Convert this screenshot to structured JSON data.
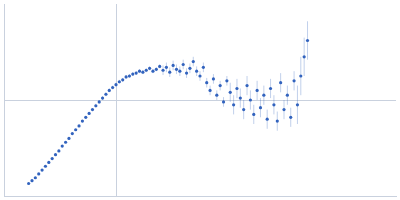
{
  "chart_data": {
    "type": "scatter",
    "color": "#3263be",
    "marker": "circle",
    "grid": true,
    "tick_labels": false,
    "xlim": [
      0,
      3.5
    ],
    "xticks": [
      1
    ],
    "ylim": [
      0,
      2
    ],
    "yticks": [
      1
    ],
    "x": [
      0.22,
      0.25,
      0.28,
      0.31,
      0.34,
      0.37,
      0.4,
      0.43,
      0.46,
      0.49,
      0.52,
      0.55,
      0.58,
      0.61,
      0.64,
      0.67,
      0.7,
      0.73,
      0.76,
      0.79,
      0.82,
      0.85,
      0.88,
      0.91,
      0.94,
      0.97,
      1.0,
      1.03,
      1.06,
      1.09,
      1.12,
      1.15,
      1.18,
      1.21,
      1.24,
      1.27,
      1.3,
      1.33,
      1.36,
      1.39,
      1.42,
      1.45,
      1.48,
      1.51,
      1.54,
      1.57,
      1.6,
      1.63,
      1.66,
      1.69,
      1.72,
      1.75,
      1.78,
      1.81,
      1.84,
      1.87,
      1.9,
      1.93,
      1.96,
      1.99,
      2.02,
      2.05,
      2.08,
      2.11,
      2.14,
      2.17,
      2.2,
      2.23,
      2.26,
      2.29,
      2.32,
      2.35,
      2.38,
      2.41,
      2.44,
      2.47,
      2.5,
      2.53,
      2.56,
      2.59,
      2.62,
      2.65,
      2.68,
      2.71
    ],
    "values": [
      0.13,
      0.16,
      0.19,
      0.23,
      0.27,
      0.31,
      0.35,
      0.39,
      0.43,
      0.47,
      0.52,
      0.56,
      0.6,
      0.65,
      0.69,
      0.73,
      0.78,
      0.82,
      0.86,
      0.9,
      0.94,
      0.98,
      1.02,
      1.06,
      1.1,
      1.13,
      1.16,
      1.19,
      1.21,
      1.24,
      1.25,
      1.27,
      1.28,
      1.3,
      1.29,
      1.31,
      1.33,
      1.3,
      1.32,
      1.35,
      1.31,
      1.34,
      1.29,
      1.36,
      1.32,
      1.3,
      1.37,
      1.28,
      1.33,
      1.4,
      1.3,
      1.25,
      1.34,
      1.18,
      1.1,
      1.22,
      1.05,
      1.15,
      0.98,
      1.2,
      1.08,
      0.95,
      1.12,
      1.02,
      0.9,
      1.15,
      1.0,
      0.85,
      1.1,
      0.92,
      1.05,
      0.8,
      1.12,
      0.95,
      0.78,
      1.18,
      0.9,
      1.05,
      0.82,
      1.2,
      0.95,
      1.25,
      1.45,
      1.62
    ],
    "errors": [
      0.01,
      0.01,
      0.01,
      0.01,
      0.01,
      0.01,
      0.01,
      0.01,
      0.01,
      0.01,
      0.01,
      0.01,
      0.01,
      0.01,
      0.01,
      0.01,
      0.01,
      0.01,
      0.01,
      0.01,
      0.02,
      0.02,
      0.02,
      0.02,
      0.02,
      0.02,
      0.02,
      0.02,
      0.02,
      0.02,
      0.02,
      0.02,
      0.02,
      0.02,
      0.02,
      0.02,
      0.02,
      0.02,
      0.02,
      0.02,
      0.05,
      0.05,
      0.05,
      0.05,
      0.05,
      0.05,
      0.05,
      0.05,
      0.05,
      0.05,
      0.05,
      0.05,
      0.05,
      0.05,
      0.05,
      0.05,
      0.05,
      0.05,
      0.05,
      0.05,
      0.1,
      0.1,
      0.1,
      0.1,
      0.1,
      0.1,
      0.1,
      0.1,
      0.1,
      0.1,
      0.1,
      0.1,
      0.1,
      0.1,
      0.1,
      0.1,
      0.1,
      0.1,
      0.1,
      0.1,
      0.2,
      0.2,
      0.2,
      0.2
    ]
  }
}
